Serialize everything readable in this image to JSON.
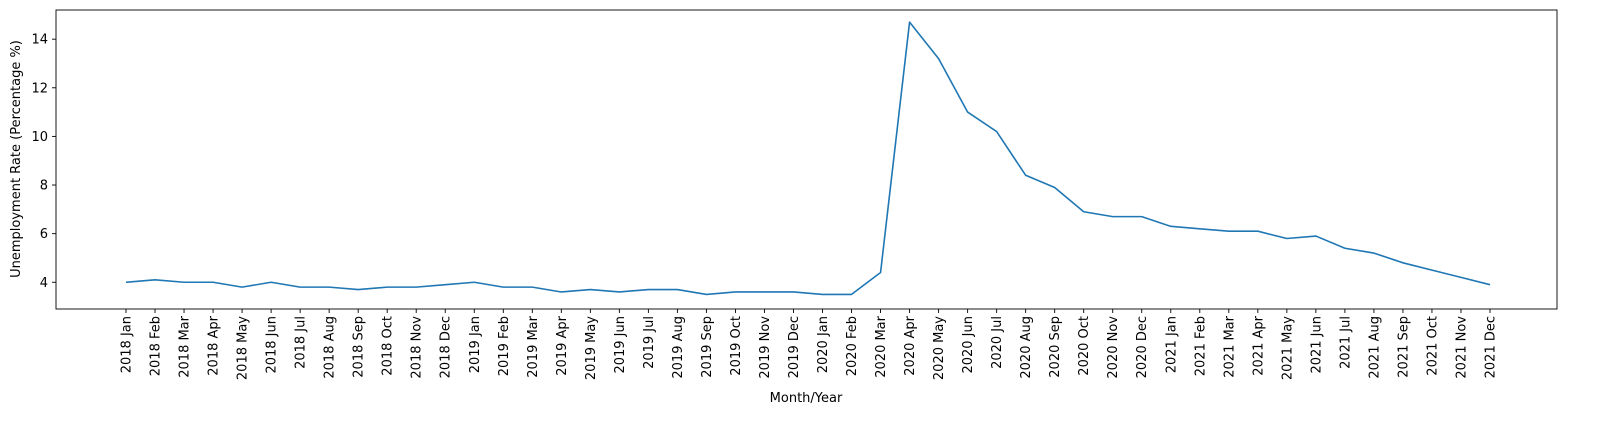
{
  "chart_data": {
    "type": "line",
    "title": "",
    "xlabel": "Month/Year",
    "ylabel": "Unemployment Rate (Percentage %)",
    "ylim": [
      2.9,
      15.2
    ],
    "yticks": [
      4,
      6,
      8,
      10,
      12,
      14
    ],
    "grid": false,
    "line_color": "#1f77b4",
    "categories": [
      "2018 Jan",
      "2018 Feb",
      "2018 Mar",
      "2018 Apr",
      "2018 May",
      "2018 Jun",
      "2018 Jul",
      "2018 Aug",
      "2018 Sep",
      "2018 Oct",
      "2018 Nov",
      "2018 Dec",
      "2019 Jan",
      "2019 Feb",
      "2019 Mar",
      "2019 Apr",
      "2019 May",
      "2019 Jun",
      "2019 Jul",
      "2019 Aug",
      "2019 Sep",
      "2019 Oct",
      "2019 Nov",
      "2019 Dec",
      "2020 Jan",
      "2020 Feb",
      "2020 Mar",
      "2020 Apr",
      "2020 May",
      "2020 Jun",
      "2020 Jul",
      "2020 Aug",
      "2020 Sep",
      "2020 Oct",
      "2020 Nov",
      "2020 Dec",
      "2021 Jan",
      "2021 Feb",
      "2021 Mar",
      "2021 Apr",
      "2021 May",
      "2021 Jun",
      "2021 Jul",
      "2021 Aug",
      "2021 Sep",
      "2021 Oct",
      "2021 Nov",
      "2021 Dec"
    ],
    "series": [
      {
        "values": [
          4.0,
          4.1,
          4.0,
          4.0,
          3.8,
          4.0,
          3.8,
          3.8,
          3.7,
          3.8,
          3.8,
          3.9,
          4.0,
          3.8,
          3.8,
          3.6,
          3.7,
          3.6,
          3.7,
          3.7,
          3.5,
          3.6,
          3.6,
          3.6,
          3.5,
          3.5,
          4.4,
          14.7,
          13.2,
          11.0,
          10.2,
          8.4,
          7.9,
          6.9,
          6.7,
          6.7,
          6.3,
          6.2,
          6.1,
          6.1,
          5.8,
          5.9,
          5.4,
          5.2,
          4.8,
          4.5,
          4.2,
          3.9
        ]
      }
    ]
  }
}
